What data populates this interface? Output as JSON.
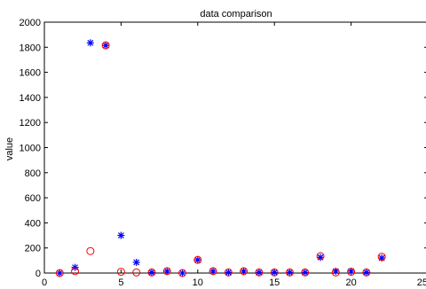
{
  "chart_data": {
    "type": "scatter",
    "title": "data comparison",
    "xlabel": "",
    "ylabel": "value",
    "xlim": [
      0,
      25
    ],
    "ylim": [
      0,
      2000
    ],
    "xticks": [
      0,
      5,
      10,
      15,
      20,
      25
    ],
    "yticks": [
      0,
      200,
      400,
      600,
      800,
      1000,
      1200,
      1400,
      1600,
      1800,
      2000
    ],
    "grid": false,
    "legend": "none",
    "series": [
      {
        "marker": "star",
        "color": "#0000ff",
        "x": [
          1,
          2,
          3,
          4,
          5,
          6,
          7,
          8,
          9,
          10,
          11,
          12,
          13,
          14,
          15,
          16,
          17,
          18,
          19,
          20,
          21,
          22
        ],
        "y": [
          0,
          45,
          1835,
          1815,
          300,
          85,
          5,
          15,
          0,
          105,
          15,
          5,
          15,
          5,
          5,
          5,
          5,
          125,
          15,
          15,
          5,
          120
        ]
      },
      {
        "marker": "circle",
        "color": "#ff0000",
        "x": [
          1,
          2,
          3,
          4,
          5,
          6,
          7,
          8,
          9,
          10,
          11,
          12,
          13,
          14,
          15,
          16,
          17,
          18,
          19,
          20,
          21,
          22
        ],
        "y": [
          0,
          15,
          175,
          1815,
          10,
          5,
          5,
          15,
          0,
          105,
          15,
          5,
          15,
          5,
          5,
          5,
          5,
          135,
          5,
          10,
          5,
          130
        ]
      }
    ]
  }
}
